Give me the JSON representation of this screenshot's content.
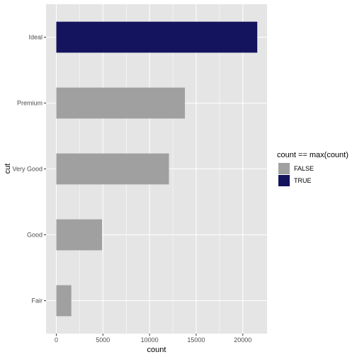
{
  "chart_data": {
    "type": "bar",
    "orientation": "horizontal",
    "categories": [
      "Fair",
      "Good",
      "Very Good",
      "Premium",
      "Ideal"
    ],
    "values": [
      1610,
      4906,
      12082,
      13791,
      21551
    ],
    "highlight": [
      false,
      false,
      false,
      false,
      true
    ],
    "xlabel": "count",
    "ylabel": "cut",
    "xlim": [
      -1100,
      22600
    ],
    "xticks": [
      0,
      5000,
      10000,
      15000,
      20000
    ],
    "xtick_labels": [
      "0",
      "5000",
      "10000",
      "15000",
      "20000"
    ],
    "grid": true,
    "legend": {
      "title": "count == max(count)",
      "position": "right",
      "entries": [
        {
          "label": "FALSE",
          "color": "#a0a0a0"
        },
        {
          "label": "TRUE",
          "color": "#13135e"
        }
      ]
    },
    "colors": {
      "panel_background": "#e5e5e5",
      "grid": "#ffffff",
      "false_fill": "#a0a0a0",
      "true_fill": "#13135e"
    }
  }
}
